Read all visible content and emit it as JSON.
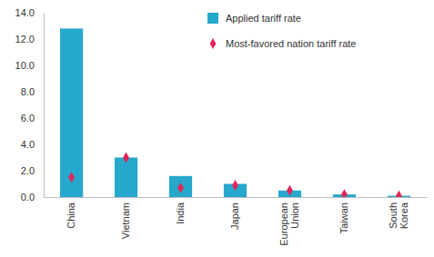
{
  "chart_data": {
    "type": "bar",
    "categories": [
      "China",
      "Vietnam",
      "India",
      "Japan",
      "European Union",
      "Taiwan",
      "South Korea"
    ],
    "series": [
      {
        "name": "Applied tariff rate",
        "type": "bar",
        "marker": "square",
        "color": "#25a8cb",
        "values": [
          12.8,
          3.0,
          1.6,
          1.0,
          0.5,
          0.2,
          0.1
        ]
      },
      {
        "name": "Most-favored nation tariff rate",
        "type": "scatter",
        "marker": "diamond",
        "color": "#e5245a",
        "values": [
          1.5,
          3.0,
          0.7,
          0.9,
          0.5,
          0.2,
          0.1
        ]
      }
    ],
    "ylim": [
      0,
      14
    ],
    "yticks": [
      {
        "value": 0,
        "label": "0.0"
      },
      {
        "value": 2,
        "label": "2.0"
      },
      {
        "value": 4,
        "label": "4.0"
      },
      {
        "value": 6,
        "label": "6.0"
      },
      {
        "value": 8,
        "label": "8.0"
      },
      {
        "value": 10,
        "label": "10.0"
      },
      {
        "value": 12,
        "label": "12.0"
      },
      {
        "value": 14,
        "label": "14.0"
      }
    ],
    "grid": false,
    "legend": "top-right"
  }
}
